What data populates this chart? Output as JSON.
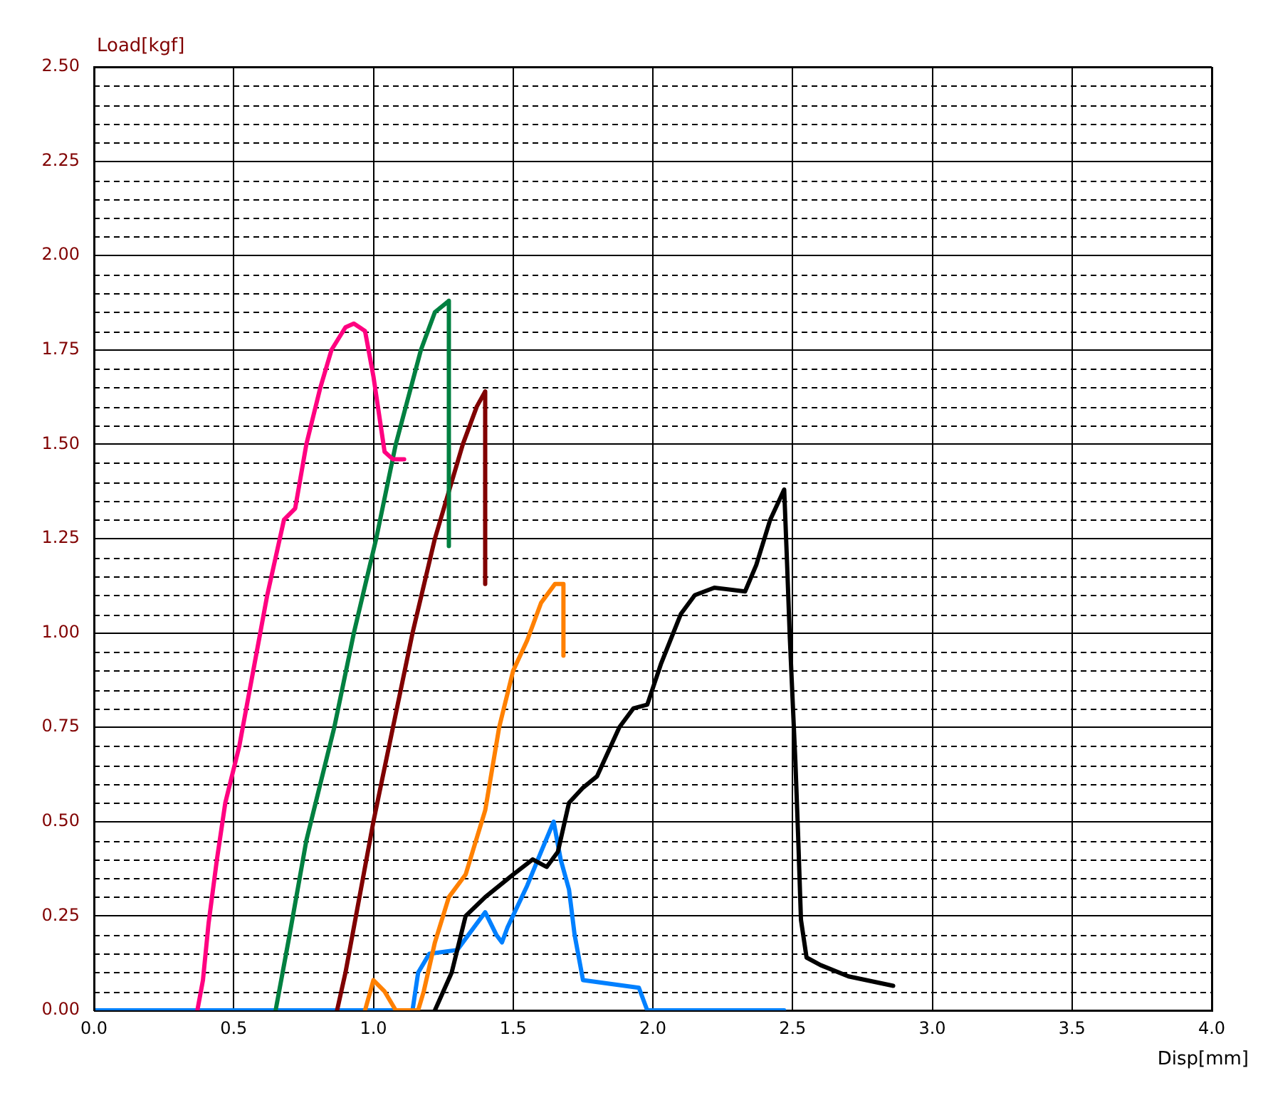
{
  "chart_data": {
    "type": "line",
    "xlabel": "Disp[mm]",
    "ylabel": "Load[kgf]",
    "xlim": [
      0,
      4
    ],
    "ylim": [
      0,
      2.5
    ],
    "xticks": [
      {
        "value": 0,
        "label": "0.0"
      },
      {
        "value": 0.5,
        "label": "0.5"
      },
      {
        "value": 1,
        "label": "1.0"
      },
      {
        "value": 1.5,
        "label": "1.5"
      },
      {
        "value": 2,
        "label": "2.0"
      },
      {
        "value": 2.5,
        "label": "2.5"
      },
      {
        "value": 3,
        "label": "3.0"
      },
      {
        "value": 3.5,
        "label": "3.5"
      },
      {
        "value": 4,
        "label": "4.0"
      }
    ],
    "yticks": [
      {
        "value": 0,
        "label": "0.00"
      },
      {
        "value": 0.05,
        "label": null
      },
      {
        "value": 0.1,
        "label": null
      },
      {
        "value": 0.15,
        "label": null
      },
      {
        "value": 0.2,
        "label": null
      },
      {
        "value": 0.25,
        "label": "0.25"
      },
      {
        "value": 0.3,
        "label": null
      },
      {
        "value": 0.35,
        "label": null
      },
      {
        "value": 0.4,
        "label": null
      },
      {
        "value": 0.45,
        "label": null
      },
      {
        "value": 0.5,
        "label": "0.50"
      },
      {
        "value": 0.55,
        "label": null
      },
      {
        "value": 0.6,
        "label": null
      },
      {
        "value": 0.65,
        "label": null
      },
      {
        "value": 0.7,
        "label": null
      },
      {
        "value": 0.75,
        "label": "0.75"
      },
      {
        "value": 0.8,
        "label": null
      },
      {
        "value": 0.85,
        "label": null
      },
      {
        "value": 0.9,
        "label": null
      },
      {
        "value": 0.95,
        "label": null
      },
      {
        "value": 1,
        "label": "1.00"
      },
      {
        "value": 1.05,
        "label": null
      },
      {
        "value": 1.1,
        "label": null
      },
      {
        "value": 1.15,
        "label": null
      },
      {
        "value": 1.2,
        "label": null
      },
      {
        "value": 1.25,
        "label": "1.25"
      },
      {
        "value": 1.3,
        "label": null
      },
      {
        "value": 1.35,
        "label": null
      },
      {
        "value": 1.4,
        "label": null
      },
      {
        "value": 1.45,
        "label": null
      },
      {
        "value": 1.5,
        "label": "1.50"
      },
      {
        "value": 1.55,
        "label": null
      },
      {
        "value": 1.6,
        "label": null
      },
      {
        "value": 1.65,
        "label": null
      },
      {
        "value": 1.7,
        "label": null
      },
      {
        "value": 1.75,
        "label": "1.75"
      },
      {
        "value": 1.8,
        "label": null
      },
      {
        "value": 1.85,
        "label": null
      },
      {
        "value": 1.9,
        "label": null
      },
      {
        "value": 1.95,
        "label": null
      },
      {
        "value": 2,
        "label": "2.00"
      },
      {
        "value": 2.05,
        "label": null
      },
      {
        "value": 2.1,
        "label": null
      },
      {
        "value": 2.15,
        "label": null
      },
      {
        "value": 2.2,
        "label": null
      },
      {
        "value": 2.25,
        "label": "2.25"
      },
      {
        "value": 2.3,
        "label": null
      },
      {
        "value": 2.35,
        "label": null
      },
      {
        "value": 2.4,
        "label": null
      },
      {
        "value": 2.45,
        "label": null
      },
      {
        "value": 2.5,
        "label": "2.50"
      }
    ],
    "grid": true,
    "legend": false,
    "marker": "none",
    "line_style": "solid",
    "series": [
      {
        "color": "#ff0080",
        "x": [
          0.37,
          0.39,
          0.41,
          0.44,
          0.47,
          0.52,
          0.57,
          0.62,
          0.68,
          0.72,
          0.76,
          0.81,
          0.85,
          0.9,
          0.93,
          0.97,
          1.0,
          1.02,
          1.04,
          1.07,
          1.11
        ],
        "values": [
          0,
          0.08,
          0.23,
          0.4,
          0.55,
          0.7,
          0.9,
          1.1,
          1.3,
          1.33,
          1.5,
          1.65,
          1.75,
          1.81,
          1.82,
          1.8,
          1.68,
          1.58,
          1.48,
          1.46,
          1.46
        ]
      },
      {
        "color": "#008040",
        "x": [
          0.65,
          0.7,
          0.76,
          0.86,
          0.93,
          1.01,
          1.08,
          1.17,
          1.22,
          1.27,
          1.27
        ],
        "values": [
          0,
          0.2,
          0.45,
          0.75,
          1.0,
          1.25,
          1.5,
          1.75,
          1.85,
          1.88,
          1.23
        ]
      },
      {
        "color": "#800000",
        "x": [
          0.87,
          0.9,
          1.0,
          1.07,
          1.14,
          1.22,
          1.32,
          1.37,
          1.4,
          1.4
        ],
        "values": [
          0,
          0.1,
          0.5,
          0.75,
          1.0,
          1.25,
          1.5,
          1.6,
          1.64,
          1.13
        ]
      },
      {
        "color": "#ff8000",
        "x": [
          0.97,
          1.0,
          1.04,
          1.08,
          1.16,
          1.18,
          1.22,
          1.27,
          1.33,
          1.4,
          1.45,
          1.5,
          1.55,
          1.6,
          1.65,
          1.68,
          1.68
        ],
        "values": [
          0,
          0.08,
          0.05,
          0,
          0,
          0.05,
          0.18,
          0.3,
          0.36,
          0.53,
          0.75,
          0.9,
          0.98,
          1.08,
          1.13,
          1.13,
          0.94
        ]
      },
      {
        "color": "#000000",
        "x": [
          1.22,
          1.28,
          1.33,
          1.4,
          1.5,
          1.57,
          1.62,
          1.66,
          1.7,
          1.75,
          1.8,
          1.88,
          1.93,
          1.98,
          2.03,
          2.1,
          2.15,
          2.22,
          2.33,
          2.37,
          2.42,
          2.47,
          2.48,
          2.49,
          2.51,
          2.52,
          2.53,
          2.55,
          2.6,
          2.7,
          2.86
        ],
        "values": [
          0,
          0.1,
          0.25,
          0.3,
          0.36,
          0.4,
          0.38,
          0.42,
          0.55,
          0.59,
          0.62,
          0.75,
          0.8,
          0.81,
          0.92,
          1.05,
          1.1,
          1.12,
          1.11,
          1.18,
          1.3,
          1.38,
          1.19,
          0.99,
          0.66,
          0.46,
          0.24,
          0.14,
          0.12,
          0.09,
          0.065
        ]
      },
      {
        "color": "#0080ff",
        "x": [
          0,
          1.14,
          1.16,
          1.2,
          1.3,
          1.36,
          1.4,
          1.44,
          1.46,
          1.48,
          1.55,
          1.6,
          1.645,
          1.67,
          1.7,
          1.72,
          1.75,
          1.95,
          1.98,
          2.47
        ],
        "values": [
          0,
          0,
          0.1,
          0.15,
          0.16,
          0.22,
          0.26,
          0.2,
          0.18,
          0.22,
          0.33,
          0.42,
          0.5,
          0.4,
          0.32,
          0.2,
          0.08,
          0.06,
          0,
          0
        ]
      }
    ]
  }
}
